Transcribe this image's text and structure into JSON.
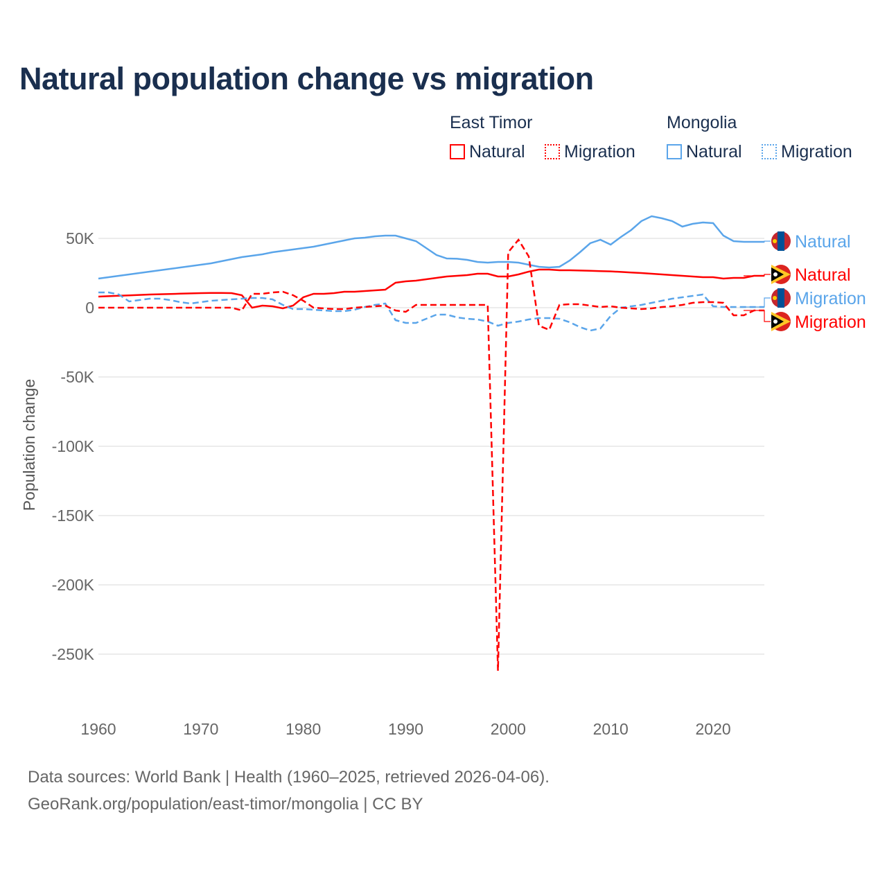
{
  "title": "Natural population change vs migration",
  "legend": {
    "groups": [
      {
        "name": "East Timor",
        "items": [
          "Natural",
          "Migration"
        ]
      },
      {
        "name": "Mongolia",
        "items": [
          "Natural",
          "Migration"
        ]
      }
    ]
  },
  "footer": {
    "line1": "Data sources: World Bank | Health (1960–2025, retrieved 2026-04-06).",
    "line2": "GeoRank.org/population/east-timor/mongolia | CC BY"
  },
  "colors": {
    "east_timor": "#ff0000",
    "mongolia": "#5aa5ea"
  },
  "chart_data": {
    "type": "line",
    "title": "Natural population change vs migration",
    "xlabel": "",
    "ylabel": "Population change",
    "xlim": [
      1960,
      2025
    ],
    "ylim": [
      -275000,
      70000
    ],
    "xticks": [
      1960,
      1970,
      1980,
      1990,
      2000,
      2010,
      2020
    ],
    "yticks": [
      {
        "v": 50000,
        "l": "50K"
      },
      {
        "v": 0,
        "l": "0"
      },
      {
        "v": -50000,
        "l": "-50K"
      },
      {
        "v": -100000,
        "l": "-100K"
      },
      {
        "v": -150000,
        "l": "-150K"
      },
      {
        "v": -200000,
        "l": "-200K"
      },
      {
        "v": -250000,
        "l": "-250K"
      }
    ],
    "start_year": 1960,
    "series": [
      {
        "name": "Mongolia Natural",
        "label": "Natural",
        "country": "Mongolia",
        "color": "#5aa5ea",
        "dash": false,
        "values": [
          21,
          22,
          23,
          24,
          25,
          26,
          27,
          28,
          29,
          30,
          31,
          32,
          33.5,
          35,
          36.5,
          37.5,
          38.5,
          40,
          41,
          42,
          43,
          44,
          45.5,
          47,
          48.5,
          50,
          50.5,
          51.5,
          52,
          52,
          50,
          48,
          43,
          38,
          35.5,
          35.3,
          34.5,
          33,
          32.5,
          33,
          33,
          32.5,
          31,
          29.5,
          29,
          29.5,
          34,
          40,
          46.5,
          49,
          45.5,
          51,
          56,
          62.5,
          66,
          64.5,
          62.5,
          58.5,
          60.5,
          61.5,
          61,
          52,
          48,
          47.5,
          47.5,
          47.5
        ]
      },
      {
        "name": "East Timor Natural",
        "label": "Natural",
        "country": "East Timor",
        "color": "#ff0000",
        "dash": false,
        "values": [
          8,
          8.3,
          8.6,
          8.9,
          9.2,
          9.5,
          9.7,
          9.9,
          10.1,
          10.3,
          10.5,
          10.6,
          10.6,
          10.5,
          9,
          0,
          1.5,
          1,
          -0.5,
          1.5,
          7.5,
          10,
          10,
          10.5,
          11.5,
          11.5,
          12,
          12.5,
          13,
          18,
          19,
          19.5,
          20.5,
          21.5,
          22.5,
          23,
          23.5,
          24.5,
          24.5,
          22.5,
          22.5,
          24,
          26,
          27.5,
          27.5,
          27,
          27,
          26.8,
          26.6,
          26.4,
          26.2,
          25.8,
          25.4,
          25,
          24.5,
          24,
          23.5,
          23,
          22.5,
          22,
          22,
          21,
          21.5,
          21.5,
          23,
          23
        ]
      },
      {
        "name": "Mongolia Migration",
        "label": "Migration",
        "country": "Mongolia",
        "color": "#5aa5ea",
        "dash": true,
        "values": [
          11,
          11,
          9.5,
          4.5,
          5.5,
          6.5,
          6.5,
          5.5,
          4,
          3,
          4,
          5,
          5.5,
          6,
          6.5,
          7,
          7,
          6,
          2,
          -1,
          -1,
          -1.5,
          -2,
          -2.5,
          -2.5,
          -1.5,
          0.5,
          2,
          3,
          -9,
          -11,
          -11,
          -8,
          -5,
          -5,
          -7,
          -8,
          -8.5,
          -10,
          -13,
          -11,
          -10,
          -8.5,
          -7.5,
          -7.5,
          -8,
          -10.5,
          -14,
          -16.5,
          -15,
          -6,
          0,
          1,
          2,
          3.5,
          5,
          6.5,
          7.5,
          8.5,
          9.5,
          1,
          0.5,
          0.5,
          0.5,
          0.5,
          0.5
        ]
      },
      {
        "name": "East Timor Migration",
        "label": "Migration",
        "country": "East Timor",
        "color": "#ff0000",
        "dash": true,
        "values": [
          0,
          0,
          0,
          0,
          0,
          0,
          0,
          0,
          0,
          0,
          0,
          0,
          0,
          0,
          -2,
          10,
          10,
          11,
          11.5,
          9,
          5,
          0,
          -0.5,
          -1,
          -1,
          0,
          0.5,
          1,
          1.5,
          -2,
          -3,
          2,
          2,
          2,
          2,
          2,
          2,
          2,
          2,
          -262,
          40,
          49,
          37,
          -13,
          -16,
          2,
          2.5,
          2.5,
          1.5,
          0.5,
          1,
          0,
          -0.5,
          -1,
          -0.5,
          0.5,
          1,
          2,
          3.5,
          4,
          4,
          3.5,
          -5.5,
          -5.5,
          -2,
          -2
        ]
      }
    ],
    "end_labels": [
      {
        "text": "Natural",
        "series": 0,
        "flag": "mongolia"
      },
      {
        "text": "Natural",
        "series": 1,
        "flag": "east-timor"
      },
      {
        "text": "Migration",
        "series": 2,
        "flag": "mongolia"
      },
      {
        "text": "Migration",
        "series": 3,
        "flag": "east-timor"
      }
    ]
  }
}
